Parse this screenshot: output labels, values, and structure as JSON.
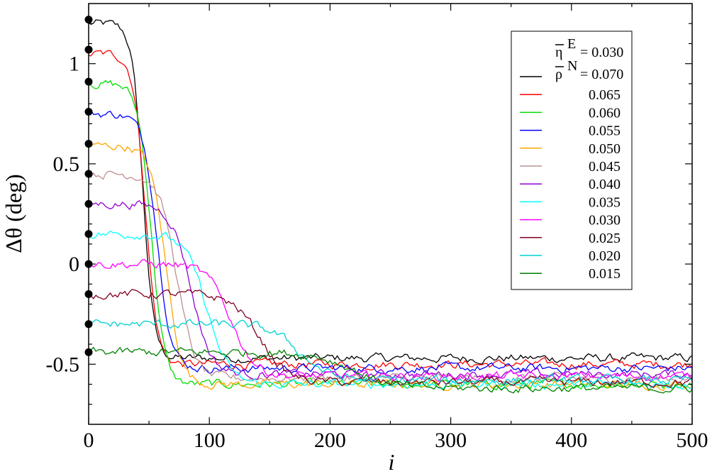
{
  "chart_data": {
    "type": "line",
    "xlabel": "i",
    "ylabel": "Δθ  (deg)",
    "xlim": [
      0,
      500
    ],
    "ylim": [
      -0.8,
      1.3
    ],
    "x_ticks": [
      0,
      100,
      200,
      300,
      400,
      500
    ],
    "x_tick_labels": [
      "0",
      "100",
      "200",
      "300",
      "400",
      "500"
    ],
    "y_ticks": [
      -0.5,
      0,
      0.5,
      1
    ],
    "y_tick_labels": [
      "-0.5",
      "0",
      "0.5",
      "1"
    ],
    "grid": false,
    "legend": {
      "placement": "top-right",
      "header_eta": "η",
      "header_eta_sup": "E",
      "header_eta_value": "= 0.030",
      "header_rho": "ρ",
      "header_rho_sup": "N",
      "header_rho_value": "= 0.070"
    },
    "markers": {
      "x": 0,
      "y": [
        1.22,
        1.07,
        0.91,
        0.76,
        0.6,
        0.45,
        0.3,
        0.15,
        0.0,
        -0.15,
        -0.3,
        -0.44
      ]
    },
    "series": [
      {
        "name": "0.070",
        "label": "",
        "color": "#000000",
        "start": 1.2,
        "end": -0.47,
        "x_drop": 45,
        "width": 10
      },
      {
        "name": "0.065",
        "label": "0.065",
        "color": "#ff0000",
        "start": 1.05,
        "end": -0.5,
        "x_drop": 47,
        "width": 11
      },
      {
        "name": "0.060",
        "label": "0.060",
        "color": "#00dd00",
        "start": 0.9,
        "end": -0.6,
        "x_drop": 52,
        "width": 12
      },
      {
        "name": "0.055",
        "label": "0.055",
        "color": "#0000ff",
        "start": 0.75,
        "end": -0.52,
        "x_drop": 57,
        "width": 13
      },
      {
        "name": "0.050",
        "label": "0.050",
        "color": "#ffa500",
        "start": 0.59,
        "end": -0.6,
        "x_drop": 64,
        "width": 14
      },
      {
        "name": "0.045",
        "label": "0.045",
        "color": "#bc8f8f",
        "start": 0.45,
        "end": -0.57,
        "x_drop": 73,
        "width": 16
      },
      {
        "name": "0.040",
        "label": "0.040",
        "color": "#9400d3",
        "start": 0.3,
        "end": -0.55,
        "x_drop": 85,
        "width": 18
      },
      {
        "name": "0.035",
        "label": "0.035",
        "color": "#00ffff",
        "start": 0.15,
        "end": -0.6,
        "x_drop": 98,
        "width": 20
      },
      {
        "name": "0.030",
        "label": "0.030",
        "color": "#ff00ff",
        "start": 0.0,
        "end": -0.56,
        "x_drop": 118,
        "width": 22
      },
      {
        "name": "0.025",
        "label": "0.025",
        "color": "#800020",
        "start": -0.15,
        "end": -0.59,
        "x_drop": 142,
        "width": 25
      },
      {
        "name": "0.020",
        "label": "0.020",
        "color": "#00d0d0",
        "start": -0.3,
        "end": -0.58,
        "x_drop": 175,
        "width": 28
      },
      {
        "name": "0.015",
        "label": "0.015",
        "color": "#008000",
        "start": -0.44,
        "end": -0.62,
        "x_drop": 220,
        "width": 35
      }
    ]
  }
}
